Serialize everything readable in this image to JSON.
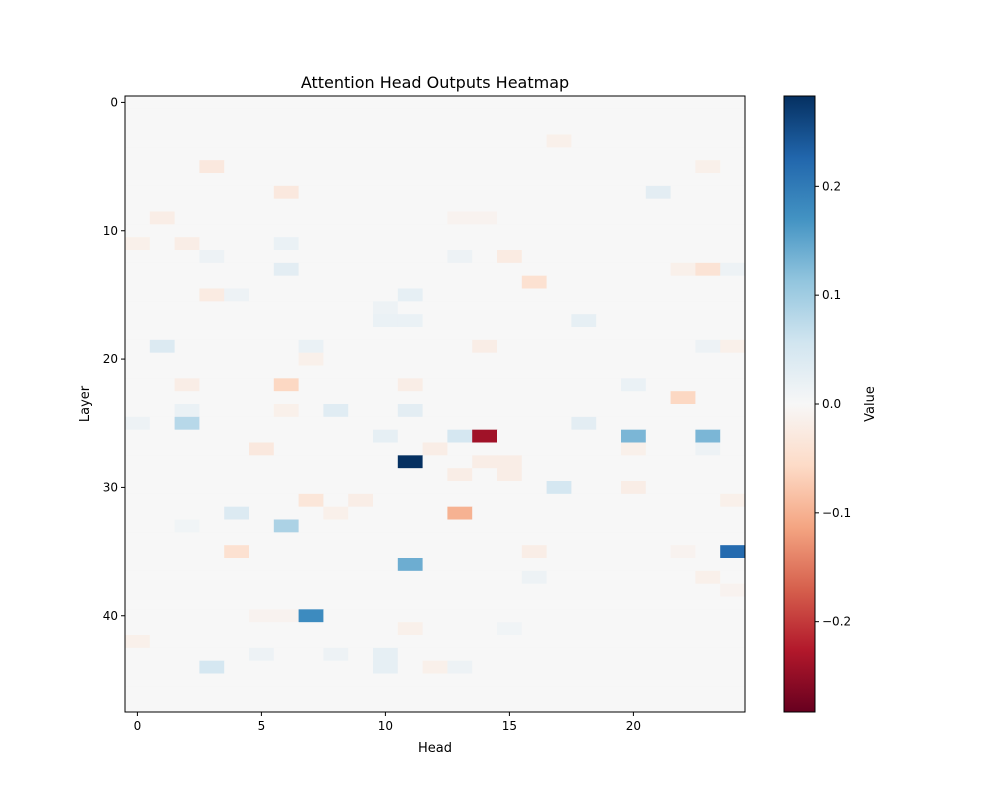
{
  "chart_data": {
    "type": "heatmap",
    "title": "Attention Head Outputs Heatmap",
    "xlabel": "Head",
    "ylabel": "Layer",
    "n_heads": 25,
    "n_layers": 48,
    "x_ticks": [
      0,
      5,
      10,
      15,
      20
    ],
    "y_ticks": [
      0,
      10,
      20,
      30,
      40
    ],
    "colormap": "RdBu_r",
    "vmin": -0.283,
    "vmax": 0.283,
    "default_value": 0.0,
    "colorbar": {
      "label": "Value",
      "ticks": [
        -0.2,
        -0.1,
        0.0,
        0.1,
        0.2
      ],
      "tick_labels": [
        "−0.2",
        "−0.1",
        "0.0",
        "0.1",
        "0.2"
      ]
    },
    "cells_note": "sparse list of [head, layer, value]; unlisted cells ≈ 0",
    "cells": [
      [
        3,
        5,
        -0.03
      ],
      [
        23,
        5,
        -0.015
      ],
      [
        6,
        7,
        -0.03
      ],
      [
        21,
        7,
        0.03
      ],
      [
        17,
        3,
        -0.015
      ],
      [
        1,
        9,
        -0.02
      ],
      [
        13,
        9,
        -0.01
      ],
      [
        14,
        9,
        -0.01
      ],
      [
        0,
        11,
        -0.015
      ],
      [
        2,
        11,
        -0.02
      ],
      [
        6,
        11,
        0.02
      ],
      [
        3,
        12,
        0.015
      ],
      [
        13,
        12,
        0.015
      ],
      [
        15,
        12,
        -0.025
      ],
      [
        6,
        13,
        0.03
      ],
      [
        22,
        13,
        -0.015
      ],
      [
        23,
        13,
        -0.04
      ],
      [
        24,
        13,
        0.015
      ],
      [
        16,
        14,
        -0.045
      ],
      [
        3,
        15,
        -0.025
      ],
      [
        4,
        15,
        0.015
      ],
      [
        11,
        15,
        0.025
      ],
      [
        10,
        16,
        0.015
      ],
      [
        10,
        17,
        0.02
      ],
      [
        11,
        17,
        0.02
      ],
      [
        18,
        17,
        0.025
      ],
      [
        1,
        19,
        0.04
      ],
      [
        7,
        19,
        0.02
      ],
      [
        14,
        19,
        -0.02
      ],
      [
        23,
        19,
        0.015
      ],
      [
        24,
        19,
        -0.015
      ],
      [
        7,
        20,
        -0.015
      ],
      [
        2,
        22,
        -0.02
      ],
      [
        6,
        22,
        -0.06
      ],
      [
        11,
        22,
        -0.02
      ],
      [
        20,
        22,
        0.02
      ],
      [
        22,
        23,
        -0.06
      ],
      [
        2,
        24,
        0.02
      ],
      [
        6,
        24,
        -0.015
      ],
      [
        8,
        24,
        0.035
      ],
      [
        11,
        24,
        0.03
      ],
      [
        0,
        25,
        0.015
      ],
      [
        2,
        25,
        0.08
      ],
      [
        18,
        25,
        0.03
      ],
      [
        10,
        26,
        0.025
      ],
      [
        13,
        26,
        0.05
      ],
      [
        14,
        26,
        -0.24
      ],
      [
        20,
        26,
        0.13
      ],
      [
        23,
        26,
        0.13
      ],
      [
        5,
        27,
        -0.03
      ],
      [
        12,
        27,
        -0.02
      ],
      [
        20,
        27,
        -0.015
      ],
      [
        23,
        27,
        0.015
      ],
      [
        11,
        28,
        0.283
      ],
      [
        14,
        28,
        -0.02
      ],
      [
        15,
        28,
        -0.02
      ],
      [
        13,
        29,
        -0.02
      ],
      [
        15,
        29,
        -0.02
      ],
      [
        17,
        30,
        0.05
      ],
      [
        20,
        30,
        -0.02
      ],
      [
        7,
        31,
        -0.035
      ],
      [
        9,
        31,
        -0.02
      ],
      [
        24,
        31,
        -0.015
      ],
      [
        4,
        32,
        0.04
      ],
      [
        8,
        32,
        -0.015
      ],
      [
        13,
        32,
        -0.1
      ],
      [
        6,
        33,
        0.09
      ],
      [
        2,
        33,
        0.01
      ],
      [
        4,
        35,
        -0.045
      ],
      [
        16,
        35,
        -0.02
      ],
      [
        22,
        35,
        -0.01
      ],
      [
        24,
        35,
        0.22
      ],
      [
        11,
        36,
        0.14
      ],
      [
        16,
        37,
        0.015
      ],
      [
        23,
        37,
        -0.015
      ],
      [
        24,
        38,
        -0.01
      ],
      [
        5,
        40,
        -0.01
      ],
      [
        6,
        40,
        -0.01
      ],
      [
        7,
        40,
        0.18
      ],
      [
        11,
        41,
        -0.015
      ],
      [
        15,
        41,
        0.01
      ],
      [
        0,
        42,
        -0.015
      ],
      [
        5,
        43,
        0.015
      ],
      [
        8,
        43,
        0.015
      ],
      [
        10,
        43,
        0.025
      ],
      [
        3,
        44,
        0.05
      ],
      [
        10,
        44,
        0.025
      ],
      [
        12,
        44,
        -0.015
      ],
      [
        13,
        44,
        0.015
      ]
    ]
  }
}
